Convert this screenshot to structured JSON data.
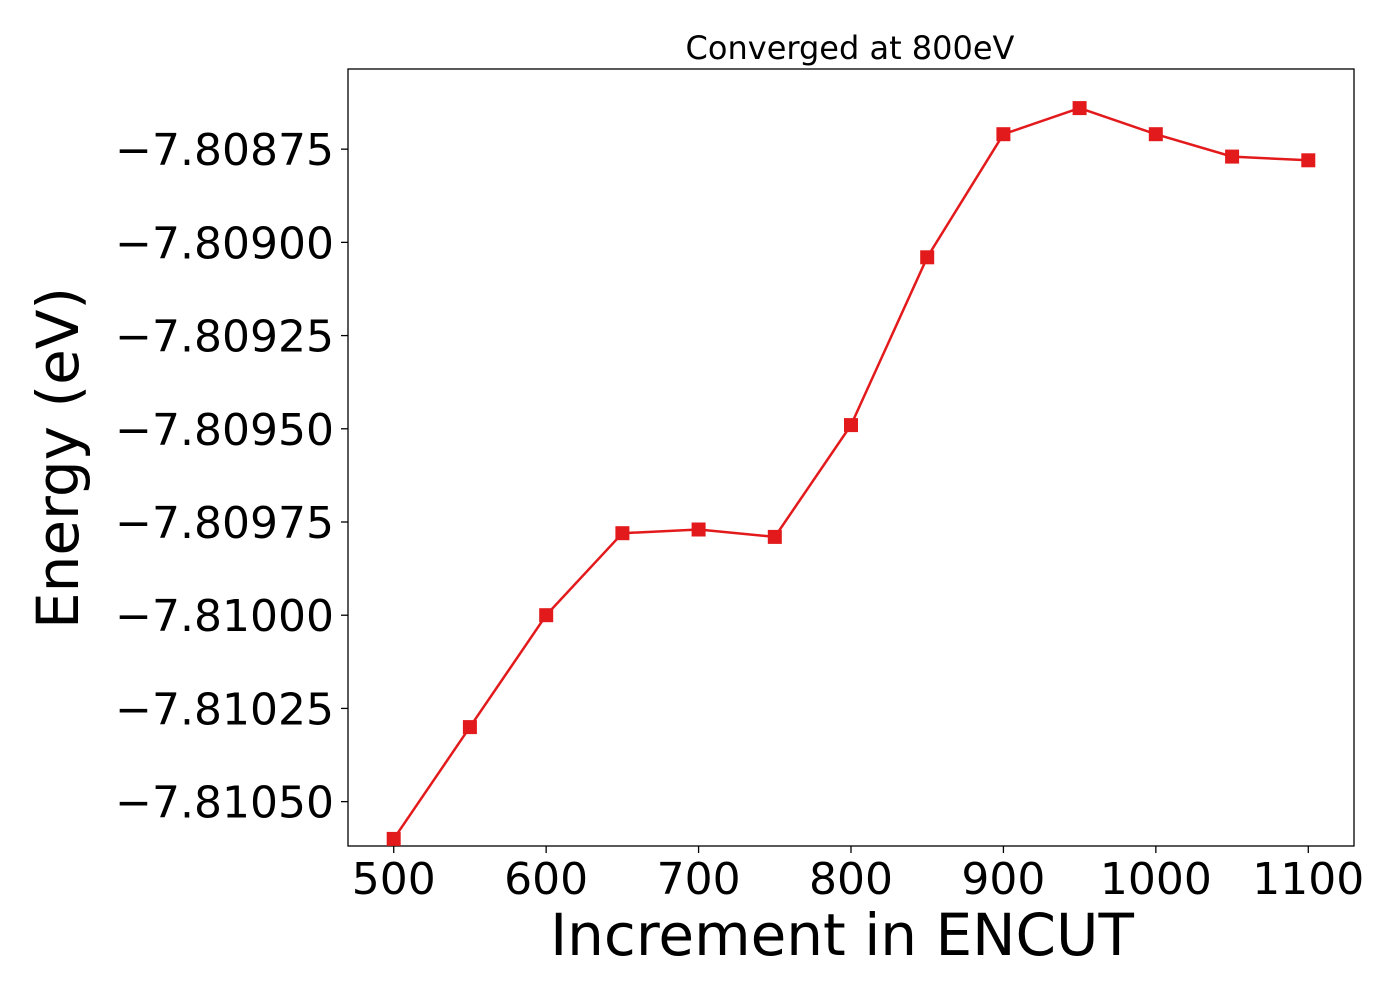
{
  "chart_data": {
    "type": "line",
    "title": "Converged at 800eV",
    "xlabel": "Increment in ENCUT",
    "ylabel": "Energy (eV)",
    "x": [
      500,
      550,
      600,
      650,
      700,
      750,
      800,
      850,
      900,
      950,
      1000,
      1050,
      1100
    ],
    "series": [
      {
        "values": [
          -7.8106,
          -7.8103,
          -7.81,
          -7.80978,
          -7.80977,
          -7.80979,
          -7.80949,
          -7.80904,
          -7.80871,
          -7.80864,
          -7.80871,
          -7.80877,
          -7.80878
        ],
        "color": "#e31a1c",
        "marker": "square"
      }
    ],
    "xticks": [
      "500",
      "600",
      "700",
      "800",
      "900",
      "1000",
      "1100"
    ],
    "yticks": [
      "−7.80875",
      "−7.80900",
      "−7.80925",
      "−7.80950",
      "−7.80975",
      "−7.81000",
      "−7.81025",
      "−7.81050"
    ],
    "xlim": [
      470,
      1130
    ],
    "ylim": [
      -7.810619,
      -7.808535
    ],
    "grid": false
  }
}
